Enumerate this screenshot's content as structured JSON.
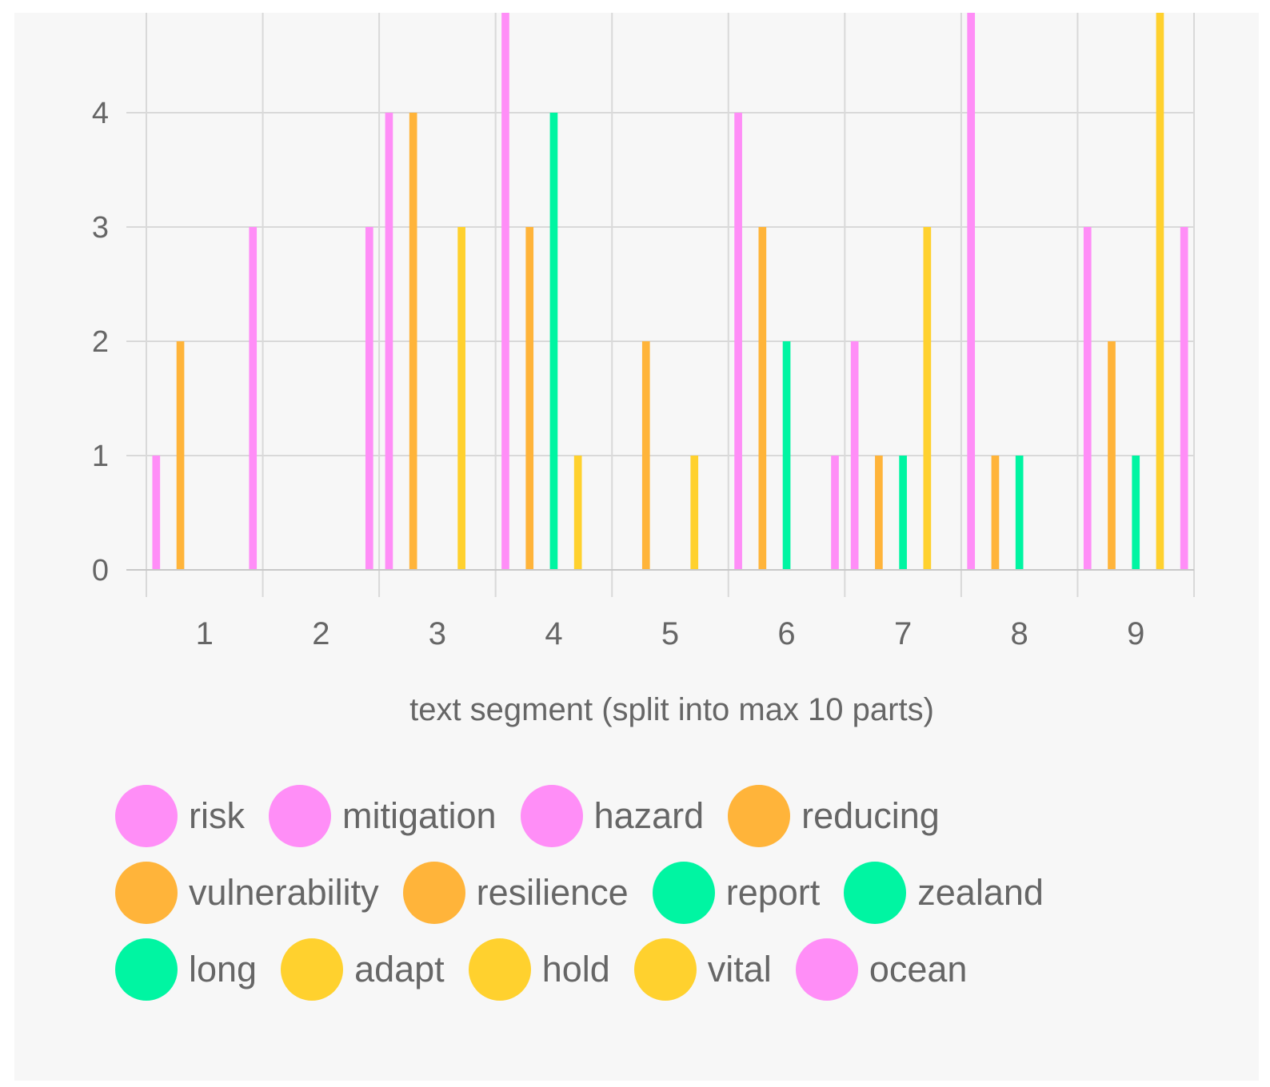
{
  "chart_data": {
    "type": "bar",
    "title": "",
    "xlabel": "text segment (split into max 10 parts)",
    "ylabel": "",
    "ylim": [
      0,
      4.85
    ],
    "yticks": [
      0,
      1,
      2,
      3,
      4
    ],
    "grid": true,
    "legend_position": "bottom",
    "categories": [
      "1",
      "2",
      "3",
      "4",
      "5",
      "6",
      "7",
      "8",
      "9"
    ],
    "series": [
      {
        "name": "risk",
        "color": "#ff8ef7",
        "values": [
          1,
          0,
          4,
          5,
          0,
          4,
          2,
          5,
          3
        ]
      },
      {
        "name": "mitigation",
        "color": "#ff8ef7",
        "values": [
          0,
          0,
          0,
          0,
          0,
          0,
          0,
          0,
          0
        ]
      },
      {
        "name": "hazard",
        "color": "#ff8ef7",
        "values": [
          0,
          0,
          0,
          0,
          0,
          0,
          0,
          0,
          0
        ]
      },
      {
        "name": "reducing",
        "color": "#ffb43a",
        "values": [
          2,
          0,
          4,
          3,
          2,
          3,
          1,
          1,
          2
        ]
      },
      {
        "name": "vulnerability",
        "color": "#ffb43a",
        "values": [
          0,
          0,
          0,
          0,
          0,
          0,
          0,
          0,
          0
        ]
      },
      {
        "name": "resilience",
        "color": "#ffb43a",
        "values": [
          0,
          0,
          0,
          0,
          0,
          0,
          0,
          0,
          0
        ]
      },
      {
        "name": "report",
        "color": "#00f5a2",
        "values": [
          0,
          0,
          0,
          4,
          0,
          2,
          1,
          1,
          1
        ]
      },
      {
        "name": "zealand",
        "color": "#00f5a2",
        "values": [
          0,
          0,
          0,
          0,
          0,
          0,
          0,
          0,
          0
        ]
      },
      {
        "name": "long",
        "color": "#00f5a2",
        "values": [
          0,
          0,
          0,
          0,
          0,
          0,
          0,
          0,
          0
        ]
      },
      {
        "name": "adapt",
        "color": "#ffd12e",
        "values": [
          0,
          0,
          3,
          1,
          1,
          0,
          3,
          0,
          5
        ]
      },
      {
        "name": "hold",
        "color": "#ffd12e",
        "values": [
          0,
          0,
          0,
          0,
          0,
          0,
          0,
          0,
          0
        ]
      },
      {
        "name": "vital",
        "color": "#ffd12e",
        "values": [
          0,
          0,
          0,
          0,
          0,
          0,
          0,
          0,
          0
        ]
      },
      {
        "name": "ocean",
        "color": "#ff8ef7",
        "values": [
          3,
          3,
          0,
          0,
          0,
          1,
          0,
          0,
          3
        ]
      }
    ]
  }
}
